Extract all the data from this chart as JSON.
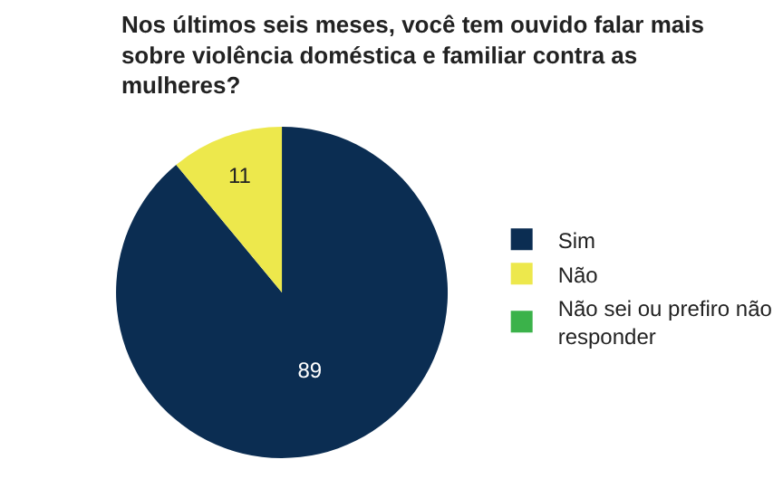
{
  "chart_data": {
    "type": "pie",
    "title": "Nos últimos seis meses, você tem ouvido falar mais sobre violência doméstica e familiar contra as mulheres?",
    "categories": [
      "Sim",
      "Não",
      "Não sei ou prefiro não responder"
    ],
    "values": [
      89,
      11,
      0
    ],
    "colors": [
      "#0b2d52",
      "#ede84c",
      "#3bb24a"
    ],
    "value_labels": [
      "89",
      "11",
      null
    ],
    "legend": "right"
  }
}
